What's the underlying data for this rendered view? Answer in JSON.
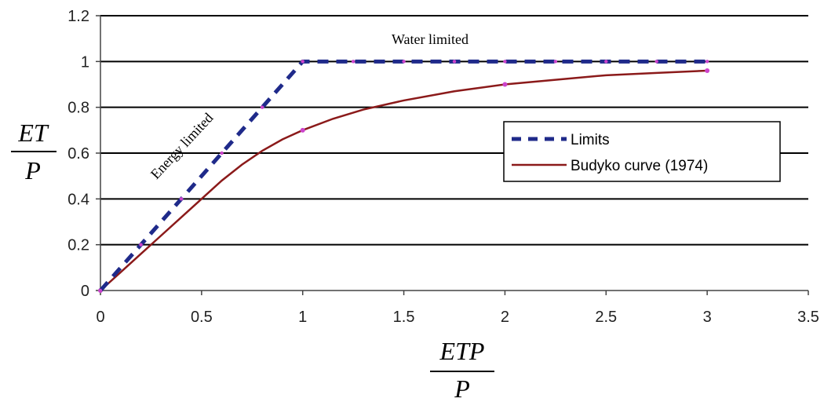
{
  "chart_data": {
    "type": "line",
    "title": "",
    "xlabel_numerator": "ETP",
    "xlabel_denominator": "P",
    "ylabel_numerator": "ET",
    "ylabel_denominator": "P",
    "xlim": [
      0,
      3.5
    ],
    "ylim": [
      0,
      1.2
    ],
    "xticks": [
      "0",
      "0.5",
      "1",
      "1.5",
      "2",
      "2.5",
      "3",
      "3.5"
    ],
    "yticks": [
      "0",
      "0.2",
      "0.4",
      "0.6",
      "0.8",
      "1",
      "1.2"
    ],
    "grid": "horizontal",
    "legend_position": "right",
    "series": [
      {
        "name": "Limits",
        "style": "dashed",
        "color": "#1f2a8a",
        "x": [
          0,
          0.2,
          0.4,
          0.6,
          0.8,
          1.0,
          1.25,
          1.5,
          1.75,
          2.0,
          2.25,
          2.5,
          2.75,
          3.0
        ],
        "y": [
          0,
          0.2,
          0.4,
          0.6,
          0.8,
          1.0,
          1.0,
          1.0,
          1.0,
          1.0,
          1.0,
          1.0,
          1.0,
          1.0
        ]
      },
      {
        "name": "Budyko curve (1974)",
        "style": "solid",
        "color": "#8b1a1a",
        "marker_color": "#cc44cc",
        "x": [
          0,
          0.1,
          0.2,
          0.3,
          0.4,
          0.5,
          0.6,
          0.7,
          0.8,
          0.9,
          1.0,
          1.15,
          1.3,
          1.5,
          1.75,
          2.0,
          2.25,
          2.5,
          2.75,
          3.0
        ],
        "y": [
          0,
          0.08,
          0.16,
          0.24,
          0.32,
          0.4,
          0.48,
          0.55,
          0.61,
          0.66,
          0.7,
          0.75,
          0.79,
          0.83,
          0.87,
          0.9,
          0.92,
          0.94,
          0.95,
          0.96
        ],
        "markers_at": [
          0,
          1.0,
          2.0,
          3.0
        ]
      }
    ],
    "annotations": [
      {
        "text": "Water limited"
      },
      {
        "text": "Energy limited"
      }
    ]
  }
}
